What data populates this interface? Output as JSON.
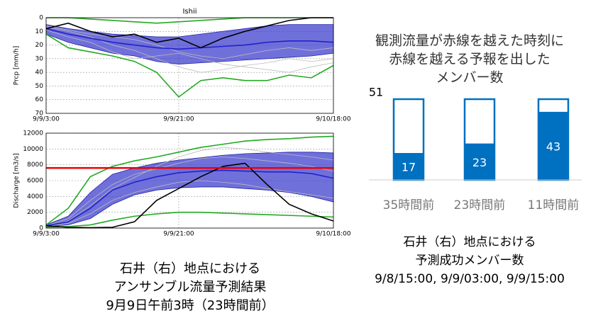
{
  "chart_data": [
    {
      "type": "ensemble",
      "title": "Ishii",
      "ylabel": "Prcp [mm/h]",
      "x": [
        0,
        3,
        6,
        9,
        12,
        15,
        18,
        21,
        24,
        27,
        30,
        33,
        36,
        39
      ],
      "xlim": [
        0,
        39
      ],
      "xticks": [
        {
          "value": 0,
          "label": "9/9/3:00"
        },
        {
          "value": 18,
          "label": "9/9/21:00"
        },
        {
          "value": 39,
          "label": "9/10/18:00"
        }
      ],
      "ylim": [
        70,
        0
      ],
      "yticks": [
        0,
        10,
        20,
        30,
        40,
        50,
        60,
        70
      ],
      "grid": true,
      "bands": [
        {
          "color": "#3333cc",
          "low": [
            5,
            8,
            10,
            12,
            13,
            14,
            14,
            12,
            10,
            8,
            6,
            5,
            5,
            5
          ],
          "high": [
            12,
            18,
            22,
            26,
            28,
            32,
            34,
            33,
            32,
            31,
            30,
            29,
            28,
            26
          ]
        }
      ],
      "series": [
        {
          "color": "#bbbbbb",
          "values": [
            7,
            10,
            14,
            20,
            24,
            30,
            36,
            40,
            38,
            35,
            33,
            30,
            32,
            30
          ]
        },
        {
          "color": "#bbbbbb",
          "values": [
            9,
            14,
            18,
            25,
            30,
            28,
            26,
            30,
            34,
            36,
            38,
            40,
            36,
            33
          ]
        },
        {
          "color": "#bbbbbb",
          "values": [
            6,
            9,
            12,
            14,
            16,
            20,
            25,
            28,
            30,
            27,
            24,
            22,
            24,
            22
          ]
        },
        {
          "color": "#22aa22",
          "values": [
            12,
            22,
            25,
            28,
            32,
            40,
            58,
            46,
            44,
            46,
            46,
            42,
            44,
            35
          ]
        },
        {
          "color": "#22aa22",
          "values": [
            0,
            0,
            1,
            2,
            3,
            4,
            3,
            2,
            1,
            0,
            0,
            0,
            0,
            0
          ]
        },
        {
          "color": "#2222cc",
          "values": [
            8,
            12,
            15,
            18,
            20,
            22,
            23,
            22,
            21,
            20,
            18,
            17,
            17,
            18
          ]
        },
        {
          "color": "#000000",
          "values": [
            8,
            4,
            10,
            14,
            12,
            18,
            15,
            22,
            15,
            10,
            6,
            2,
            0,
            0
          ]
        }
      ]
    },
    {
      "type": "ensemble",
      "ylabel": "Discharge [m3/s]",
      "x": [
        0,
        3,
        6,
        9,
        12,
        15,
        18,
        21,
        24,
        27,
        30,
        33,
        36,
        39
      ],
      "xlim": [
        0,
        39
      ],
      "xticks": [
        {
          "value": 0,
          "label": "9/9/3:00"
        },
        {
          "value": 18,
          "label": "9/9/21:00"
        },
        {
          "value": 39,
          "label": "9/10/18:00"
        }
      ],
      "ylim": [
        0,
        12000
      ],
      "yticks": [
        0,
        2000,
        4000,
        6000,
        8000,
        10000,
        12000
      ],
      "grid": true,
      "threshold": {
        "value": 7600,
        "color": "#ee0000"
      },
      "bands": [
        {
          "color": "#3333cc",
          "low": [
            200,
            400,
            1200,
            3000,
            4200,
            4800,
            5100,
            5200,
            5200,
            5000,
            4800,
            4500,
            4000,
            3300
          ],
          "high": [
            400,
            1500,
            4500,
            6800,
            7600,
            8200,
            8600,
            8900,
            9200,
            9400,
            9500,
            9600,
            9600,
            9500
          ]
        }
      ],
      "series": [
        {
          "color": "#bbbbbb",
          "values": [
            300,
            1200,
            3500,
            5500,
            6800,
            7500,
            8200,
            8800,
            9000,
            8800,
            8500,
            8200,
            7800,
            7200
          ]
        },
        {
          "color": "#bbbbbb",
          "values": [
            200,
            600,
            1800,
            3500,
            4500,
            5200,
            5800,
            6000,
            5800,
            5500,
            5000,
            4600,
            4200,
            3800
          ]
        },
        {
          "color": "#bbbbbb",
          "values": [
            300,
            900,
            2800,
            5000,
            6400,
            7800,
            9000,
            9800,
            10200,
            10000,
            9600,
            9300,
            9000,
            8600
          ]
        },
        {
          "color": "#22aa22",
          "values": [
            400,
            2500,
            6500,
            7800,
            8500,
            9000,
            9600,
            10200,
            10600,
            11000,
            11200,
            11300,
            11500,
            11600
          ]
        },
        {
          "color": "#22aa22",
          "values": [
            100,
            200,
            400,
            1000,
            1500,
            1800,
            2000,
            2000,
            1900,
            1800,
            1700,
            1600,
            1500,
            1400
          ]
        },
        {
          "color": "#2222cc",
          "values": [
            300,
            800,
            2500,
            4800,
            5800,
            6500,
            7000,
            7200,
            7300,
            7200,
            7100,
            7100,
            6900,
            6300
          ]
        },
        {
          "color": "#000000",
          "values": [
            300,
            100,
            50,
            100,
            800,
            3500,
            5000,
            6500,
            7800,
            8200,
            5500,
            3000,
            1800,
            900
          ]
        }
      ],
      "caption": [
        "石井（右）地点における",
        "アンサンブル流量予測結果",
        "9月9日午前3時（23時間前）"
      ]
    },
    {
      "type": "bar",
      "title": [
        "観測流量が赤線を越えた時刻に",
        "赤線を越える予報を出した",
        "メンバー数"
      ],
      "total": 51,
      "categories": [
        "35時間前",
        "23時間前",
        "11時間前"
      ],
      "values": [
        17,
        23,
        43
      ],
      "color": "#0070c0",
      "caption": [
        "石井（右）地点における",
        "予測成功メンバー数",
        "9/8/15:00, 9/9/03:00, 9/9/15:00"
      ]
    }
  ]
}
